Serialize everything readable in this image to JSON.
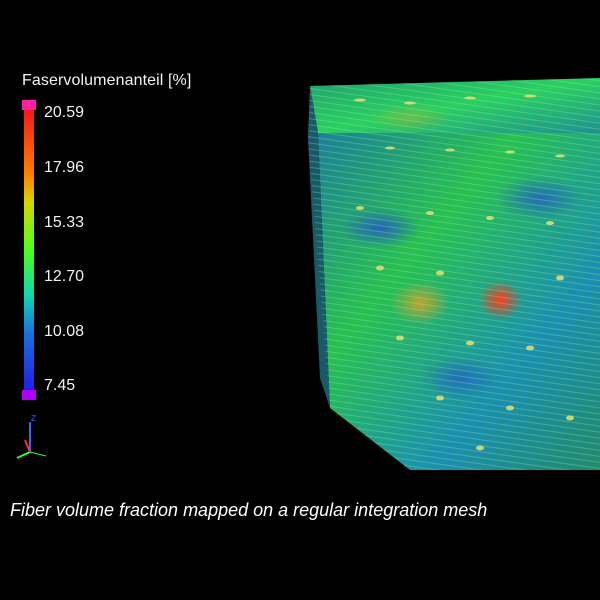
{
  "legend": {
    "title": "Faservolumenanteil [%]",
    "ticks": [
      "20.59",
      "17.96",
      "15.33",
      "12.70",
      "10.08",
      "7.45"
    ],
    "top_color": "#ff1fa0",
    "bottom_color": "#b000ff"
  },
  "axis_triad": {
    "z_label": "Z",
    "colors": {
      "x": "#ff3030",
      "y": "#30ff30",
      "z": "#4060ff"
    }
  },
  "caption": "Fiber volume fraction mapped on a regular integration mesh"
}
